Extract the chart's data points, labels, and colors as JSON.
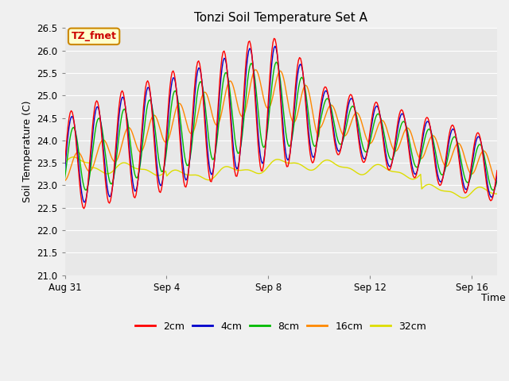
{
  "title": "Tonzi Soil Temperature Set A",
  "xlabel": "Time",
  "ylabel": "Soil Temperature (C)",
  "ylim": [
    21.0,
    26.5
  ],
  "yticks": [
    21.0,
    21.5,
    22.0,
    22.5,
    23.0,
    23.5,
    24.0,
    24.5,
    25.0,
    25.5,
    26.0,
    26.5
  ],
  "xtick_labels": [
    "Aug 31",
    "Sep 4",
    "Sep 8",
    "Sep 12",
    "Sep 16"
  ],
  "xtick_positions": [
    0,
    4,
    8,
    12,
    16
  ],
  "legend_labels": [
    "2cm",
    "4cm",
    "8cm",
    "16cm",
    "32cm"
  ],
  "legend_colors": [
    "#ff0000",
    "#0000cc",
    "#00bb00",
    "#ff8800",
    "#dddd00"
  ],
  "line_colors": [
    "#ff0000",
    "#0000cc",
    "#00bb00",
    "#ff8800",
    "#dddd00"
  ],
  "annotation_text": "TZ_fmet",
  "annotation_box_facecolor": "#ffffcc",
  "annotation_box_edgecolor": "#cc8800",
  "annotation_text_color": "#cc0000",
  "fig_facecolor": "#f0f0f0",
  "ax_facecolor": "#e8e8e8",
  "grid_color": "#ffffff",
  "n_days": 17,
  "pts_per_day": 24
}
